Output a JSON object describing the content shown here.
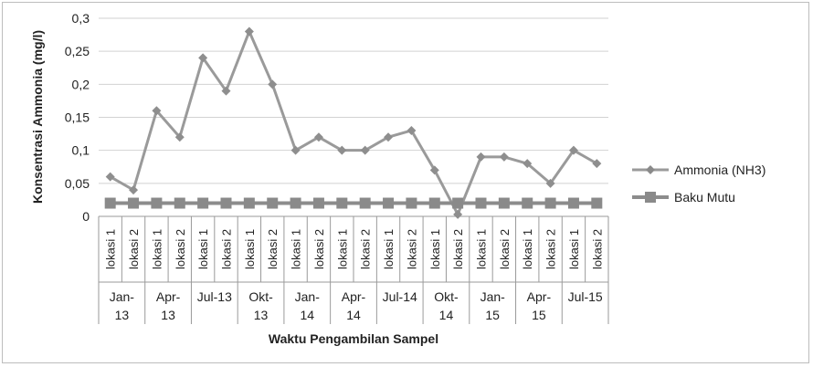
{
  "chart_data": {
    "type": "line",
    "xlabel": "Waktu Pengambilan Sampel",
    "ylabel": "Konsentrasi Ammonia (mg/l)",
    "ylim": [
      0,
      0.3
    ],
    "yticks": [
      "0",
      "0,05",
      "0,1",
      "0,15",
      "0,2",
      "0,25",
      "0,3"
    ],
    "categories": [
      "lokasi 1",
      "lokasi 2",
      "lokasi 1",
      "lokasi 2",
      "lokasi 1",
      "lokasi 2",
      "lokasi 1",
      "lokasi 2",
      "lokasi 1",
      "lokasi 2",
      "lokasi 1",
      "lokasi 2",
      "lokasi 1",
      "lokasi 2",
      "lokasi 1",
      "lokasi 2",
      "lokasi 1",
      "lokasi 2",
      "lokasi 1",
      "lokasi 2",
      "lokasi 1",
      "lokasi 2"
    ],
    "groups": [
      {
        "line1": "Jan-",
        "line2": "13"
      },
      {
        "line1": "Apr-",
        "line2": "13"
      },
      {
        "line1": "Jul-13",
        "line2": ""
      },
      {
        "line1": "Okt-",
        "line2": "13"
      },
      {
        "line1": "Jan-",
        "line2": "14"
      },
      {
        "line1": "Apr-",
        "line2": "14"
      },
      {
        "line1": "Jul-14",
        "line2": ""
      },
      {
        "line1": "Okt-",
        "line2": "14"
      },
      {
        "line1": "Jan-",
        "line2": "15"
      },
      {
        "line1": "Apr-",
        "line2": "15"
      },
      {
        "line1": "Jul-15",
        "line2": ""
      }
    ],
    "series": [
      {
        "name": "Ammonia (NH3)",
        "marker": "diamond",
        "color": "#9a9a9a",
        "values": [
          0.06,
          0.04,
          0.16,
          0.12,
          0.24,
          0.19,
          0.28,
          0.2,
          0.1,
          0.12,
          0.1,
          0.1,
          0.12,
          0.13,
          0.07,
          0.003,
          0.09,
          0.09,
          0.08,
          0.05,
          0.1,
          0.08
        ]
      },
      {
        "name": "Baku Mutu",
        "marker": "square",
        "color": "#8c8c8c",
        "values": [
          0.02,
          0.02,
          0.02,
          0.02,
          0.02,
          0.02,
          0.02,
          0.02,
          0.02,
          0.02,
          0.02,
          0.02,
          0.02,
          0.02,
          0.02,
          0.02,
          0.02,
          0.02,
          0.02,
          0.02,
          0.02,
          0.02
        ]
      }
    ],
    "grid": true,
    "legend": "right"
  }
}
